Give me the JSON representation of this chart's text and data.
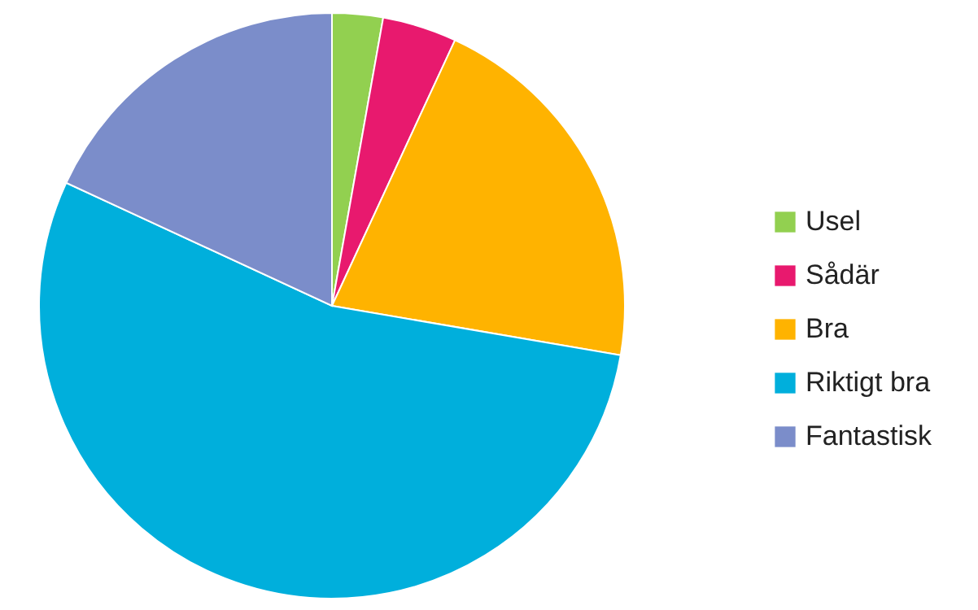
{
  "chart_data": {
    "type": "pie",
    "categories": [
      "Usel",
      "Sådär",
      "Bra",
      "Riktigt bra",
      "Fantastisk"
    ],
    "values": [
      2.8,
      4.1,
      20.8,
      54.2,
      18.1
    ],
    "colors": [
      "#92d050",
      "#e8196e",
      "#ffb300",
      "#00afdc",
      "#7b8dca"
    ],
    "legend": "right"
  }
}
